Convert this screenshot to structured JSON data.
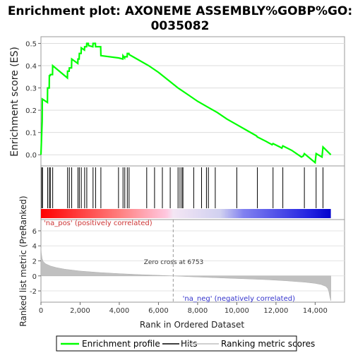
{
  "chart_data": {
    "type": "line",
    "title_line1": "Enrichment plot: AXONEME ASSEMBLY%GOBP%GO:",
    "title_line2": "0035082",
    "es_panel": {
      "ylabel": "Enrichment score (ES)",
      "ylim": [
        -0.05,
        0.53
      ],
      "yticks": [
        "0.0",
        "0.1",
        "0.2",
        "0.3",
        "0.4",
        "0.5"
      ],
      "ytick_values": [
        0.0,
        0.1,
        0.2,
        0.3,
        0.4,
        0.5
      ],
      "series": [
        {
          "name": "Enrichment profile",
          "color": "#00ff00",
          "x": [
            0,
            60,
            70,
            330,
            340,
            420,
            430,
            470,
            480,
            590,
            600,
            1350,
            1360,
            1440,
            1450,
            1560,
            1570,
            1880,
            1890,
            1950,
            1960,
            2050,
            2060,
            2220,
            2230,
            2330,
            2340,
            2420,
            2430,
            2650,
            2660,
            2780,
            2790,
            3050,
            3060,
            3950,
            3960,
            4180,
            4190,
            4270,
            4280,
            4400,
            4410,
            4490,
            4500,
            4800,
            5500,
            6000,
            6500,
            7000,
            7500,
            8000,
            8500,
            9000,
            9500,
            10000,
            10500,
            11000,
            11050,
            11500,
            11800,
            11850,
            12200,
            12300,
            12350,
            12800,
            13300,
            13400,
            13450,
            14000,
            14050,
            14350,
            14400,
            14800
          ],
          "y": [
            0.0,
            0.15,
            0.25,
            0.235,
            0.3,
            0.3,
            0.355,
            0.355,
            0.36,
            0.36,
            0.4,
            0.345,
            0.375,
            0.375,
            0.39,
            0.39,
            0.43,
            0.41,
            0.43,
            0.43,
            0.455,
            0.455,
            0.48,
            0.47,
            0.485,
            0.485,
            0.5,
            0.5,
            0.49,
            0.485,
            0.5,
            0.5,
            0.485,
            0.485,
            0.445,
            0.435,
            0.435,
            0.43,
            0.445,
            0.435,
            0.44,
            0.44,
            0.455,
            0.455,
            0.45,
            0.435,
            0.4,
            0.37,
            0.335,
            0.3,
            0.27,
            0.24,
            0.215,
            0.19,
            0.16,
            0.135,
            0.11,
            0.085,
            0.08,
            0.06,
            0.045,
            0.05,
            0.035,
            0.03,
            0.04,
            0.02,
            -0.01,
            -0.005,
            0.005,
            -0.035,
            0.005,
            -0.01,
            0.035,
            0.0
          ]
        }
      ]
    },
    "hits": {
      "name": "Hits",
      "x": [
        40,
        80,
        340,
        430,
        480,
        600,
        1360,
        1450,
        1570,
        1890,
        1960,
        2060,
        2230,
        2340,
        2660,
        2790,
        3060,
        3960,
        4190,
        4280,
        4410,
        4500,
        5400,
        5800,
        6200,
        6600,
        7000,
        7100,
        7200,
        7250,
        7800,
        8200,
        8450,
        8550,
        8900,
        10000,
        11050,
        11850,
        12350,
        13450,
        14050,
        14400
      ]
    },
    "colorbar": {
      "pos_label": "'na_pos' (positively correlated)",
      "neg_label": "'na_neg' (negatively correlated)"
    },
    "metric_panel": {
      "ylabel": "Ranked list metric (PreRanked)",
      "ylim": [
        -3.5,
        7.5
      ],
      "yticks": [
        "-2",
        "0",
        "2",
        "4",
        "6"
      ],
      "ytick_values": [
        -2,
        0,
        2,
        4,
        6
      ],
      "zero_cross_label": "Zero cross at 6753",
      "zero_cross_x": 6753,
      "profile_x": [
        0,
        20,
        60,
        120,
        250,
        500,
        800,
        1200,
        2000,
        3000,
        4000,
        5000,
        6000,
        6753,
        7500,
        8500,
        9500,
        10500,
        11500,
        12500,
        13500,
        14000,
        14300,
        14550,
        14650,
        14700,
        14750,
        14800
      ],
      "profile_y": [
        3.8,
        3.0,
        2.3,
        1.9,
        1.6,
        1.3,
        1.1,
        0.9,
        0.65,
        0.45,
        0.3,
        0.18,
        0.08,
        0.0,
        -0.1,
        -0.2,
        -0.3,
        -0.4,
        -0.5,
        -0.65,
        -0.85,
        -1.0,
        -1.15,
        -1.4,
        -1.7,
        -2.1,
        -2.8,
        -3.3
      ]
    },
    "xaxis": {
      "xlabel": "Rank in Ordered Dataset",
      "xlim": [
        0,
        15500
      ],
      "xticks": [
        "0",
        "2,000",
        "4,000",
        "6,000",
        "8,000",
        "10,000",
        "12,000",
        "14,000"
      ],
      "xtick_values": [
        0,
        2000,
        4000,
        6000,
        8000,
        10000,
        12000,
        14000
      ]
    },
    "legend": {
      "placement": "bottom",
      "items": [
        {
          "name": "Enrichment profile",
          "color": "#00ff00"
        },
        {
          "name": "Hits",
          "color": "#000000"
        },
        {
          "name": "Ranking metric scores",
          "color": "#c0c0c0"
        }
      ]
    }
  }
}
